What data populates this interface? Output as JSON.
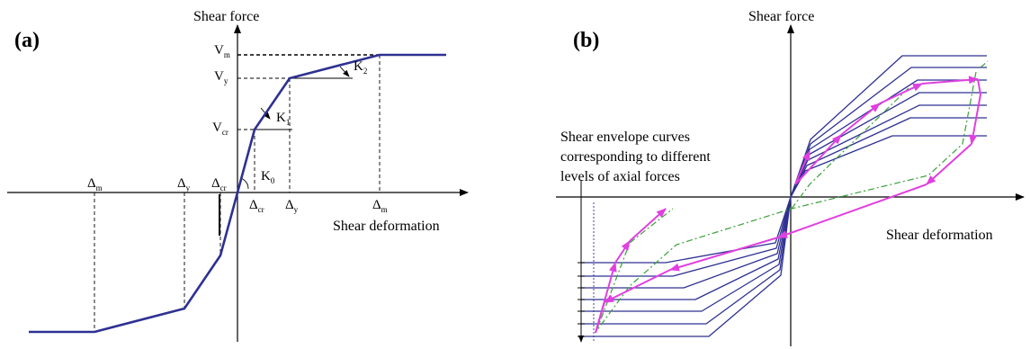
{
  "panel_a": {
    "tag": "(a)",
    "y_axis_label": "Shear force",
    "x_axis_label": "Shear deformation",
    "v_labels": [
      {
        "base": "V",
        "sub": "m"
      },
      {
        "base": "V",
        "sub": "y"
      },
      {
        "base": "V",
        "sub": "cr"
      }
    ],
    "k_labels": [
      {
        "base": "K",
        "sub": "2"
      },
      {
        "base": "K",
        "sub": "1"
      },
      {
        "base": "K",
        "sub": "0"
      }
    ],
    "d_pos_labels": [
      {
        "base": "Δ",
        "sub": "cr"
      },
      {
        "base": "Δ",
        "sub": "y"
      },
      {
        "base": "Δ",
        "sub": "m"
      }
    ],
    "d_neg_labels": [
      {
        "base": "Δ",
        "sub": "m"
      },
      {
        "base": "Δ",
        "sub": "y"
      },
      {
        "base": "Δ",
        "sub": "cr"
      }
    ]
  },
  "panel_b": {
    "tag": "(b)",
    "y_axis_label": "Shear force",
    "x_axis_label": "Shear deformation",
    "note_lines": [
      "Shear envelope curves",
      "corresponding to different",
      "levels of axial forces"
    ]
  },
  "colors": {
    "curve": "#2e3192",
    "loop": "#e040e0",
    "dashdot": "#3aa03a",
    "axis": "#000000"
  }
}
